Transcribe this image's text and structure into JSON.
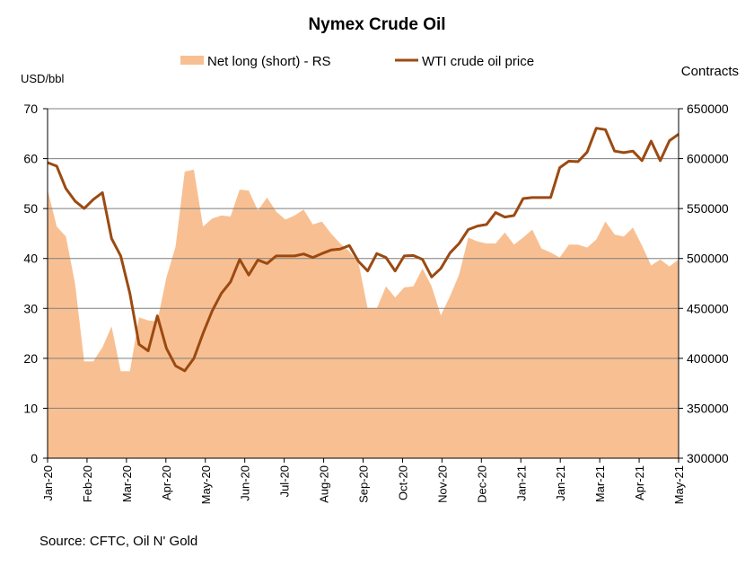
{
  "chart_data": {
    "type": "line",
    "title": "Nymex Crude Oil",
    "left_axis_unit": "USD/bbl",
    "right_axis_unit": "Contracts",
    "source": "Source: CFTC, Oil N' Gold",
    "legend": {
      "placement": "top-center"
    },
    "y_left": {
      "min": 0,
      "max": 70,
      "ticks": [
        "0",
        "10",
        "20",
        "30",
        "40",
        "50",
        "60",
        "70"
      ]
    },
    "y_right": {
      "min": 300000,
      "max": 650000,
      "ticks": [
        "300000",
        "350000",
        "400000",
        "450000",
        "500000",
        "550000",
        "600000",
        "650000"
      ]
    },
    "x_ticks": [
      "Jan-20",
      "Feb-20",
      "Mar-20",
      "Apr-20",
      "May-20",
      "Jun-20",
      "Jul-20",
      "Aug-20",
      "Sep-20",
      "Oct-20",
      "Nov-20",
      "Dec-20",
      "Jan-21",
      "Jan-21",
      "Mar-21",
      "Apr-21",
      "May-21"
    ],
    "grid": "horizontal",
    "colors": {
      "area": "#f8c092",
      "line": "#9b4a12",
      "grid": "#7f7f7f"
    },
    "series": [
      {
        "name": "Net long (short) - RS",
        "kind": "area",
        "axis": "right",
        "values": [
          569000,
          532000,
          522000,
          475000,
          397000,
          397000,
          411000,
          432000,
          387000,
          387000,
          441000,
          438000,
          437000,
          481000,
          512000,
          587000,
          589000,
          532000,
          540000,
          543000,
          542000,
          569000,
          568000,
          548000,
          561000,
          547000,
          539000,
          543000,
          549000,
          534000,
          537000,
          525000,
          515000,
          507000,
          496000,
          450000,
          450000,
          472000,
          461000,
          471000,
          472000,
          490000,
          472000,
          443000,
          462000,
          484000,
          521000,
          517000,
          515000,
          515000,
          526000,
          514000,
          521000,
          529000,
          510000,
          506000,
          501000,
          514000,
          514000,
          511000,
          519000,
          537000,
          524000,
          522000,
          531000,
          513000,
          493000,
          499000,
          492000,
          499000
        ]
      },
      {
        "name": "WTI crude oil price",
        "kind": "line",
        "axis": "left",
        "values": [
          59.2,
          58.5,
          54.0,
          51.5,
          50.0,
          51.8,
          53.2,
          44.0,
          40.5,
          33.0,
          22.8,
          21.5,
          28.5,
          22.0,
          18.5,
          17.5,
          20.0,
          25.0,
          29.5,
          33.0,
          35.3,
          39.8,
          36.7,
          39.7,
          39.0,
          40.5,
          40.5,
          40.5,
          40.9,
          40.2,
          41.0,
          41.7,
          41.9,
          42.6,
          39.4,
          37.5,
          41.0,
          40.2,
          37.5,
          40.5,
          40.6,
          39.8,
          36.3,
          38.0,
          41.1,
          43.0,
          45.8,
          46.5,
          46.8,
          49.2,
          48.3,
          48.6,
          52.0,
          52.2,
          52.2,
          52.2,
          58.2,
          59.5,
          59.4,
          61.3,
          66.1,
          65.8,
          61.5,
          61.2,
          61.5,
          59.6,
          63.5,
          59.6,
          63.6,
          64.9
        ]
      }
    ]
  }
}
